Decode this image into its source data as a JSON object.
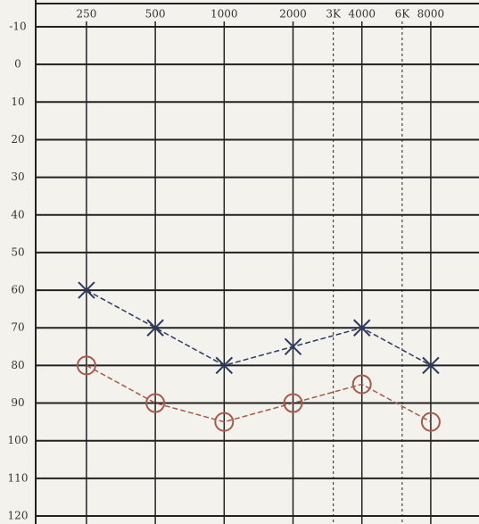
{
  "chart_data": {
    "type": "line",
    "x": [
      250,
      500,
      1000,
      2000,
      4000,
      8000
    ],
    "series": [
      {
        "color": "#2d3b63",
        "marker": "x",
        "values": [
          60,
          70,
          80,
          75,
          70,
          80
        ]
      },
      {
        "color": "#a8594a",
        "marker": "o",
        "values": [
          80,
          90,
          95,
          90,
          85,
          95
        ]
      }
    ],
    "xscale": "log",
    "xlim": [
      150,
      13000
    ],
    "xticks": [
      250,
      500,
      1000,
      2000,
      {
        "value": 3000,
        "label": "3K"
      },
      4000,
      {
        "value": 6000,
        "label": "6K"
      },
      8000
    ],
    "ylim": [
      -10,
      120
    ],
    "yticks": [
      -10,
      0,
      10,
      20,
      30,
      40,
      50,
      60,
      70,
      80,
      90,
      100,
      110,
      120
    ],
    "grid": true
  }
}
